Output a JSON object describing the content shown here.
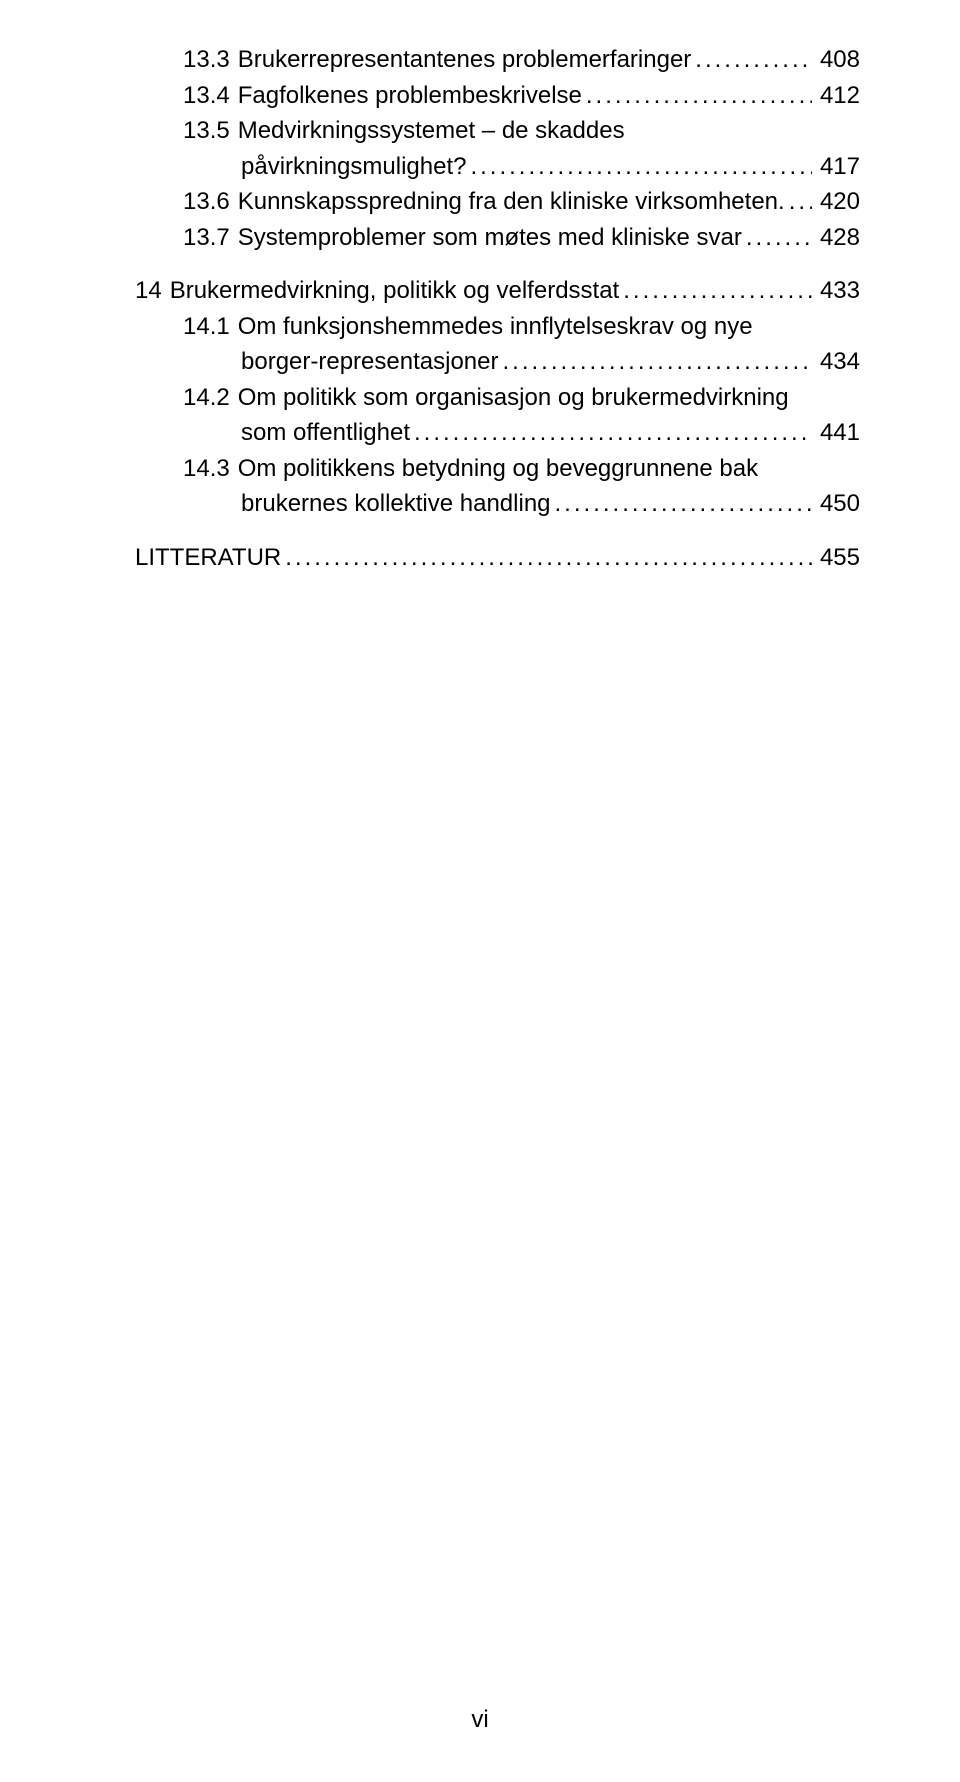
{
  "toc": {
    "e1": {
      "num": "13.3",
      "label": "Brukerrepresentantenes problemerfaringer",
      "page": "408"
    },
    "e2": {
      "num": "13.4",
      "label": "Fagfolkenes problembeskrivelse",
      "page": "412"
    },
    "e3a": {
      "num": "13.5",
      "label": "Medvirkningssystemet – de skaddes"
    },
    "e3b": {
      "label": "påvirkningsmulighet?",
      "page": "417"
    },
    "e4": {
      "num": "13.6",
      "label": "Kunnskapsspredning fra den kliniske virksomheten.",
      "page": "420"
    },
    "e5": {
      "num": "13.7",
      "label": "Systemproblemer som møtes med kliniske svar",
      "page": "428"
    },
    "e6": {
      "num": "14",
      "label": "Brukermedvirkning, politikk og velferdsstat",
      "page": "433"
    },
    "e7a": {
      "num": "14.1",
      "label": "Om funksjonshemmedes innflytelseskrav og nye"
    },
    "e7b": {
      "label": "borger-representasjoner",
      "page": "434"
    },
    "e8a": {
      "num": "14.2",
      "label": "Om politikk som organisasjon og brukermedvirkning"
    },
    "e8b": {
      "label": "som offentlighet",
      "page": "441"
    },
    "e9a": {
      "num": "14.3",
      "label": "Om politikkens betydning og beveggrunnene bak"
    },
    "e9b": {
      "label": "brukernes kollektive handling",
      "page": "450"
    },
    "lit": {
      "label": "LITTERATUR",
      "page": "455"
    }
  },
  "dots": "................................................................................................................................................",
  "footer": "vi"
}
